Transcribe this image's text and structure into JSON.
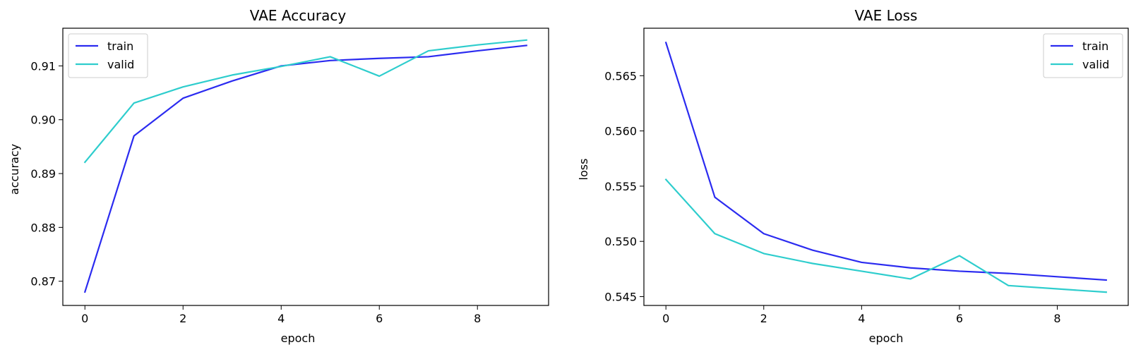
{
  "chart_data": [
    {
      "type": "line",
      "title": "VAE Accuracy",
      "xlabel": "epoch",
      "ylabel": "accuracy",
      "x": [
        0,
        1,
        2,
        3,
        4,
        5,
        6,
        7,
        8,
        9
      ],
      "xlim": [
        -0.45,
        9.45
      ],
      "ylim": [
        0.8655,
        0.917
      ],
      "xticks": [
        0,
        2,
        4,
        6,
        8
      ],
      "xtick_labels": [
        "0",
        "2",
        "4",
        "6",
        "8"
      ],
      "yticks": [
        0.87,
        0.88,
        0.89,
        0.9,
        0.91
      ],
      "ytick_labels": [
        "0.87",
        "0.88",
        "0.89",
        "0.90",
        "0.91"
      ],
      "legend": "top-left",
      "grid": false,
      "series": [
        {
          "name": "train",
          "color": "#2b2bf0",
          "values": [
            0.868,
            0.897,
            0.904,
            0.9072,
            0.91,
            0.911,
            0.9114,
            0.9117,
            0.9128,
            0.9138
          ]
        },
        {
          "name": "valid",
          "color": "#2ecdcd",
          "values": [
            0.8921,
            0.9031,
            0.9061,
            0.9083,
            0.9099,
            0.9117,
            0.9081,
            0.9128,
            0.9139,
            0.9148
          ]
        }
      ]
    },
    {
      "type": "line",
      "title": "VAE Loss",
      "xlabel": "epoch",
      "ylabel": "loss",
      "x": [
        0,
        1,
        2,
        3,
        4,
        5,
        6,
        7,
        8,
        9
      ],
      "xlim": [
        -0.45,
        9.45
      ],
      "ylim": [
        0.5442,
        0.5693
      ],
      "xticks": [
        0,
        2,
        4,
        6,
        8
      ],
      "xtick_labels": [
        "0",
        "2",
        "4",
        "6",
        "8"
      ],
      "yticks": [
        0.545,
        0.55,
        0.555,
        0.56,
        0.565
      ],
      "ytick_labels": [
        "0.545",
        "0.550",
        "0.555",
        "0.560",
        "0.565"
      ],
      "legend": "top-right",
      "grid": false,
      "series": [
        {
          "name": "train",
          "color": "#2b2bf0",
          "values": [
            0.568,
            0.554,
            0.5507,
            0.5492,
            0.5481,
            0.5476,
            0.5473,
            0.5471,
            0.5468,
            0.5465
          ]
        },
        {
          "name": "valid",
          "color": "#2ecdcd",
          "values": [
            0.5556,
            0.5507,
            0.5489,
            0.548,
            0.5473,
            0.5466,
            0.5487,
            0.546,
            0.5457,
            0.5454
          ]
        }
      ]
    }
  ]
}
